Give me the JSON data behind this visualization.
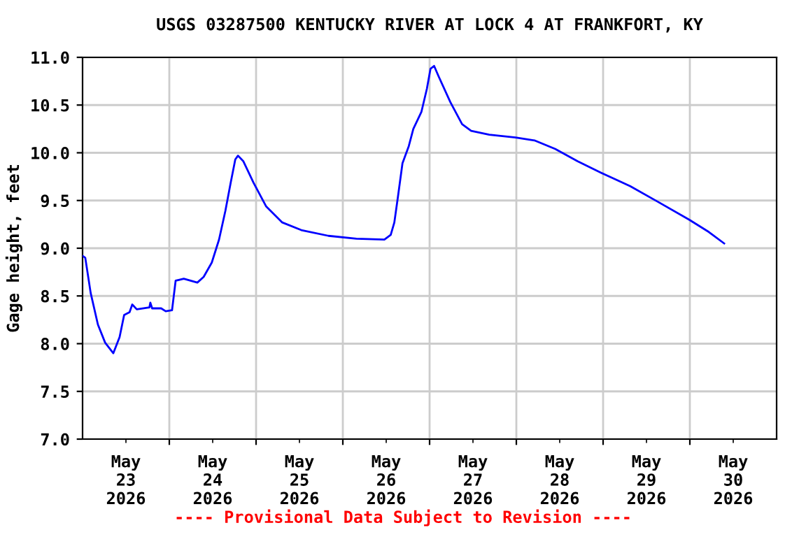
{
  "chart_data": {
    "type": "line",
    "title": "USGS 03287500 KENTUCKY RIVER AT LOCK 4 AT FRANKFORT, KY",
    "ylabel": "Gage height, feet",
    "x": [
      "2026-05-23T00:00",
      "2026-05-23T00:45",
      "2026-05-23T02:15",
      "2026-05-23T04:15",
      "2026-05-23T06:15",
      "2026-05-23T08:30",
      "2026-05-23T10:15",
      "2026-05-23T11:30",
      "2026-05-23T13:00",
      "2026-05-23T13:45",
      "2026-05-23T15:00",
      "2026-05-23T18:30",
      "2026-05-23T18:45",
      "2026-05-23T19:15",
      "2026-05-23T21:45",
      "2026-05-23T23:00",
      "2026-05-24T00:45",
      "2026-05-24T01:45",
      "2026-05-24T04:00",
      "2026-05-24T07:45",
      "2026-05-24T09:30",
      "2026-05-24T11:45",
      "2026-05-24T13:45",
      "2026-05-24T15:30",
      "2026-05-24T17:00",
      "2026-05-24T18:15",
      "2026-05-24T19:00",
      "2026-05-24T20:30",
      "2026-05-24T23:15",
      "2026-05-25T02:45",
      "2026-05-25T07:15",
      "2026-05-25T12:30",
      "2026-05-25T20:00",
      "2026-05-26T03:45",
      "2026-05-26T11:30",
      "2026-05-26T13:15",
      "2026-05-26T14:15",
      "2026-05-26T15:15",
      "2026-05-26T16:30",
      "2026-05-26T18:15",
      "2026-05-26T19:30",
      "2026-05-26T21:45",
      "2026-05-26T23:15",
      "2026-05-27T00:15",
      "2026-05-27T01:15",
      "2026-05-27T02:30",
      "2026-05-27T05:45",
      "2026-05-27T09:00",
      "2026-05-27T11:30",
      "2026-05-27T16:30",
      "2026-05-27T23:45",
      "2026-05-28T05:00",
      "2026-05-28T10:45",
      "2026-05-28T17:00",
      "2026-05-28T23:30",
      "2026-05-29T07:30",
      "2026-05-29T15:00",
      "2026-05-29T23:45",
      "2026-05-30T05:15",
      "2026-05-30T09:30"
    ],
    "series": [
      {
        "color": "#0000ff",
        "values": [
          8.92,
          8.9,
          8.53,
          8.2,
          8.01,
          7.9,
          8.07,
          8.3,
          8.33,
          8.41,
          8.36,
          8.38,
          8.43,
          8.37,
          8.37,
          8.34,
          8.35,
          8.66,
          8.68,
          8.64,
          8.7,
          8.85,
          9.09,
          9.39,
          9.69,
          9.93,
          9.97,
          9.91,
          9.69,
          9.44,
          9.27,
          9.19,
          9.13,
          9.1,
          9.09,
          9.14,
          9.27,
          9.54,
          9.89,
          10.07,
          10.25,
          10.43,
          10.67,
          10.88,
          10.91,
          10.8,
          10.53,
          10.3,
          10.23,
          10.19,
          10.16,
          10.13,
          10.04,
          9.91,
          9.79,
          9.65,
          9.49,
          9.3,
          9.17,
          9.05
        ]
      }
    ],
    "xlim": [
      "2026-05-23T00:00",
      "2026-05-31T00:00"
    ],
    "xticks": [
      {
        "value": "2026-05-23T12:00",
        "label": "May\n23\n2026"
      },
      {
        "value": "2026-05-24T12:00",
        "label": "May\n24\n2026"
      },
      {
        "value": "2026-05-25T12:00",
        "label": "May\n25\n2026"
      },
      {
        "value": "2026-05-26T12:00",
        "label": "May\n26\n2026"
      },
      {
        "value": "2026-05-27T12:00",
        "label": "May\n27\n2026"
      },
      {
        "value": "2026-05-28T12:00",
        "label": "May\n28\n2026"
      },
      {
        "value": "2026-05-29T12:00",
        "label": "May\n29\n2026"
      },
      {
        "value": "2026-05-30T12:00",
        "label": "May\n30\n2026"
      },
      {
        "value": "2026-05-24T00:00",
        "label": null
      },
      {
        "value": "2026-05-25T00:00",
        "label": null
      },
      {
        "value": "2026-05-26T00:00",
        "label": null
      },
      {
        "value": "2026-05-27T00:00",
        "label": null
      },
      {
        "value": "2026-05-28T00:00",
        "label": null
      },
      {
        "value": "2026-05-29T00:00",
        "label": null
      },
      {
        "value": "2026-05-30T00:00",
        "label": null
      }
    ],
    "ylim": [
      7.0,
      11.0
    ],
    "yticks": [
      {
        "value": 7.0,
        "label": "7.0"
      },
      {
        "value": 7.5,
        "label": "7.5"
      },
      {
        "value": 8.0,
        "label": "8.0"
      },
      {
        "value": 8.5,
        "label": "8.5"
      },
      {
        "value": 9.0,
        "label": "9.0"
      },
      {
        "value": 9.5,
        "label": "9.5"
      },
      {
        "value": 10.0,
        "label": "10.0"
      },
      {
        "value": 10.5,
        "label": "10.5"
      },
      {
        "value": 11.0,
        "label": "11.0"
      }
    ],
    "grid": true,
    "legend": false,
    "line_style": "solid",
    "marker": "none",
    "annotations": [
      "---- Provisional Data Subject to Revision ----"
    ]
  }
}
